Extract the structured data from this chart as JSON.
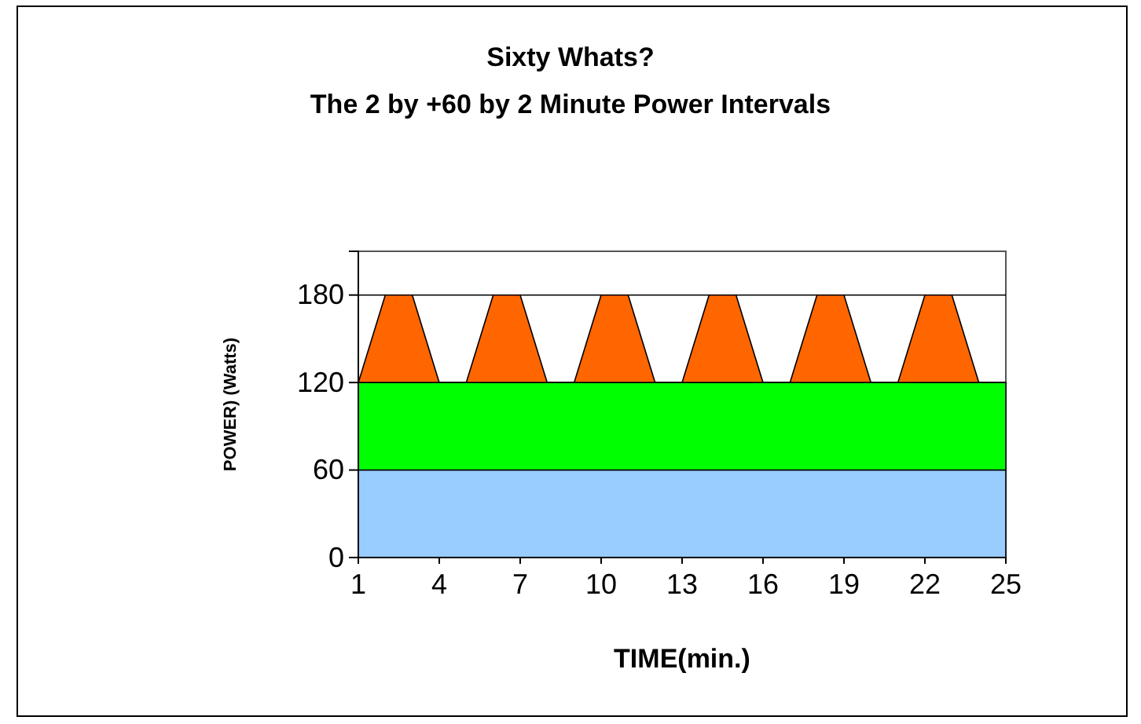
{
  "chart_data": {
    "type": "area",
    "stacked": true,
    "title": "Sixty Whats?",
    "subtitle": "The 2 by +60 by 2 Minute Power Intervals",
    "xlabel": "TIME(min.)",
    "ylabel": "POWER) (Watts)",
    "x": [
      1,
      2,
      3,
      4,
      5,
      6,
      7,
      8,
      9,
      10,
      11,
      12,
      13,
      14,
      15,
      16,
      17,
      18,
      19,
      20,
      21,
      22,
      23,
      24,
      25
    ],
    "series": [
      {
        "color": "#99ccff",
        "values": [
          60,
          60,
          60,
          60,
          60,
          60,
          60,
          60,
          60,
          60,
          60,
          60,
          60,
          60,
          60,
          60,
          60,
          60,
          60,
          60,
          60,
          60,
          60,
          60,
          60
        ]
      },
      {
        "color": "#00ff00",
        "values": [
          60,
          60,
          60,
          60,
          60,
          60,
          60,
          60,
          60,
          60,
          60,
          60,
          60,
          60,
          60,
          60,
          60,
          60,
          60,
          60,
          60,
          60,
          60,
          60,
          60
        ]
      },
      {
        "color": "#ff6600",
        "values": [
          0,
          60,
          60,
          0,
          0,
          60,
          60,
          0,
          0,
          60,
          60,
          0,
          0,
          60,
          60,
          0,
          0,
          60,
          60,
          0,
          0,
          60,
          60,
          0,
          0
        ]
      }
    ],
    "xlim": [
      1,
      25
    ],
    "xticks": [
      1,
      4,
      7,
      10,
      13,
      16,
      19,
      22,
      25
    ],
    "ylim": [
      0,
      210
    ],
    "yticks": [
      0,
      60,
      120,
      180
    ],
    "grid": "y"
  }
}
